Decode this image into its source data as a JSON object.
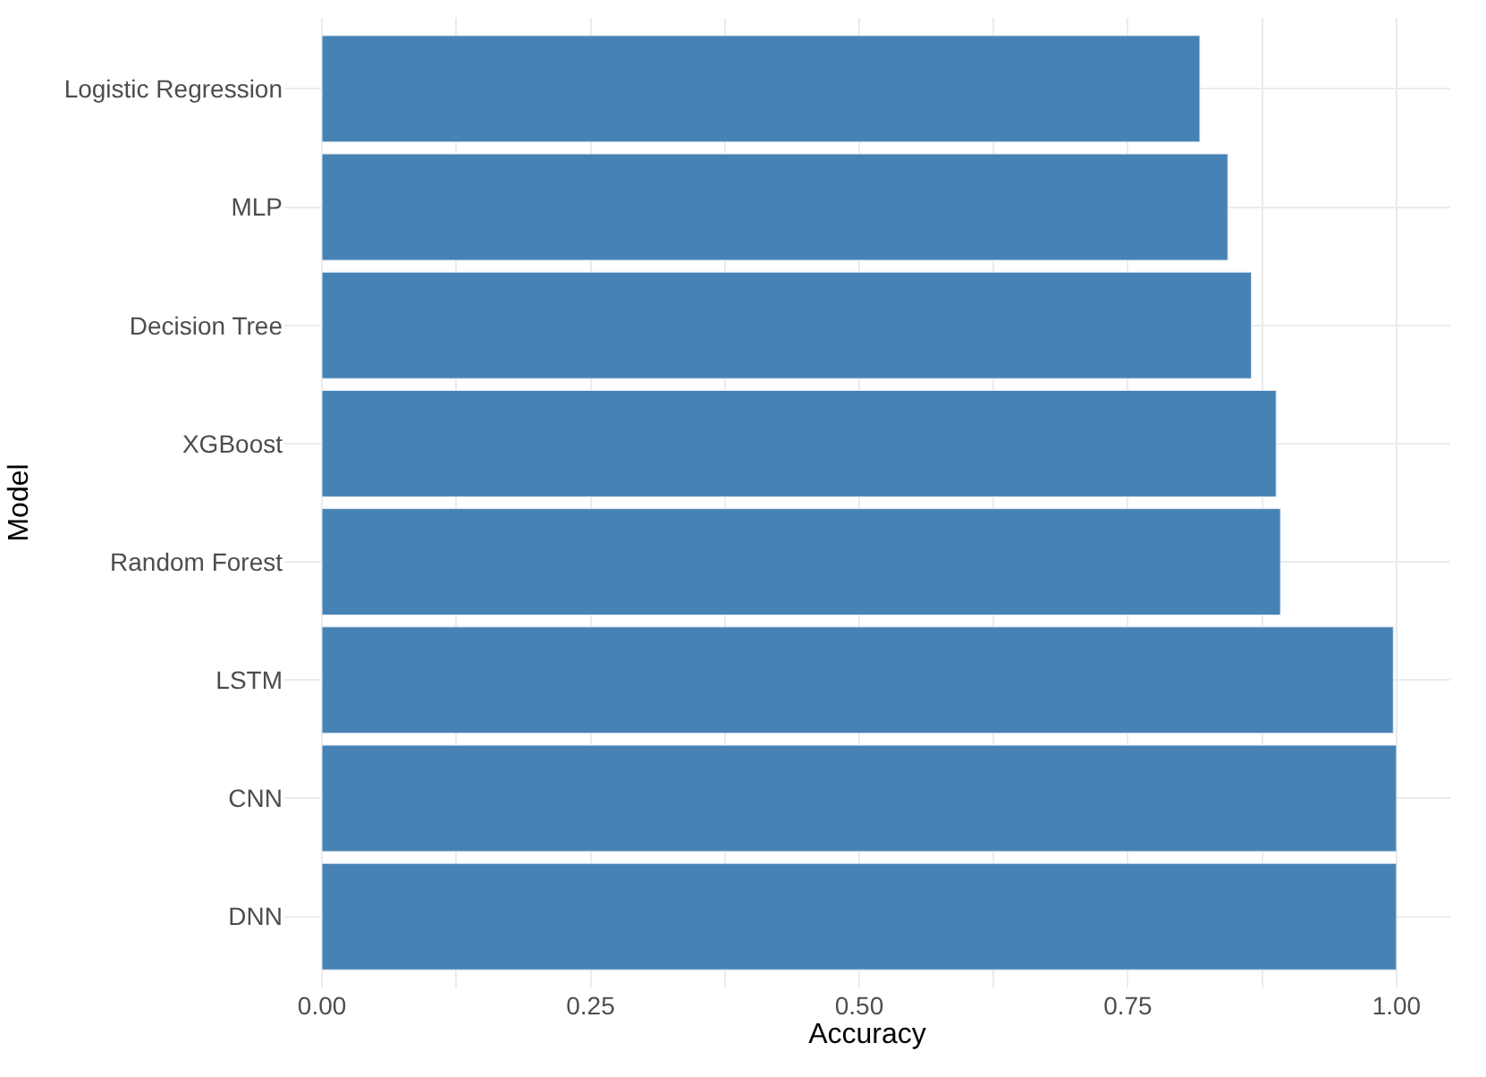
{
  "chart_data": {
    "type": "bar",
    "orientation": "horizontal",
    "xlabel": "Accuracy",
    "ylabel": "Model",
    "categories": [
      "Logistic Regression",
      "MLP",
      "Decision Tree",
      "XGBoost",
      "Random Forest",
      "LSTM",
      "CNN",
      "DNN"
    ],
    "values": [
      0.817,
      0.843,
      0.865,
      0.888,
      0.892,
      0.997,
      1.0,
      1.0
    ],
    "color": "#4682b4",
    "xlim": [
      -0.035,
      1.05
    ],
    "xticks": [
      {
        "value": 0,
        "label": "0.00"
      },
      {
        "value": 0.125,
        "label": null
      },
      {
        "value": 0.25,
        "label": "0.25"
      },
      {
        "value": 0.375,
        "label": null
      },
      {
        "value": 0.5,
        "label": "0.50"
      },
      {
        "value": 0.625,
        "label": null
      },
      {
        "value": 0.75,
        "label": "0.75"
      },
      {
        "value": 0.875,
        "label": null
      },
      {
        "value": 1,
        "label": "1.00"
      }
    ],
    "grid": true
  }
}
